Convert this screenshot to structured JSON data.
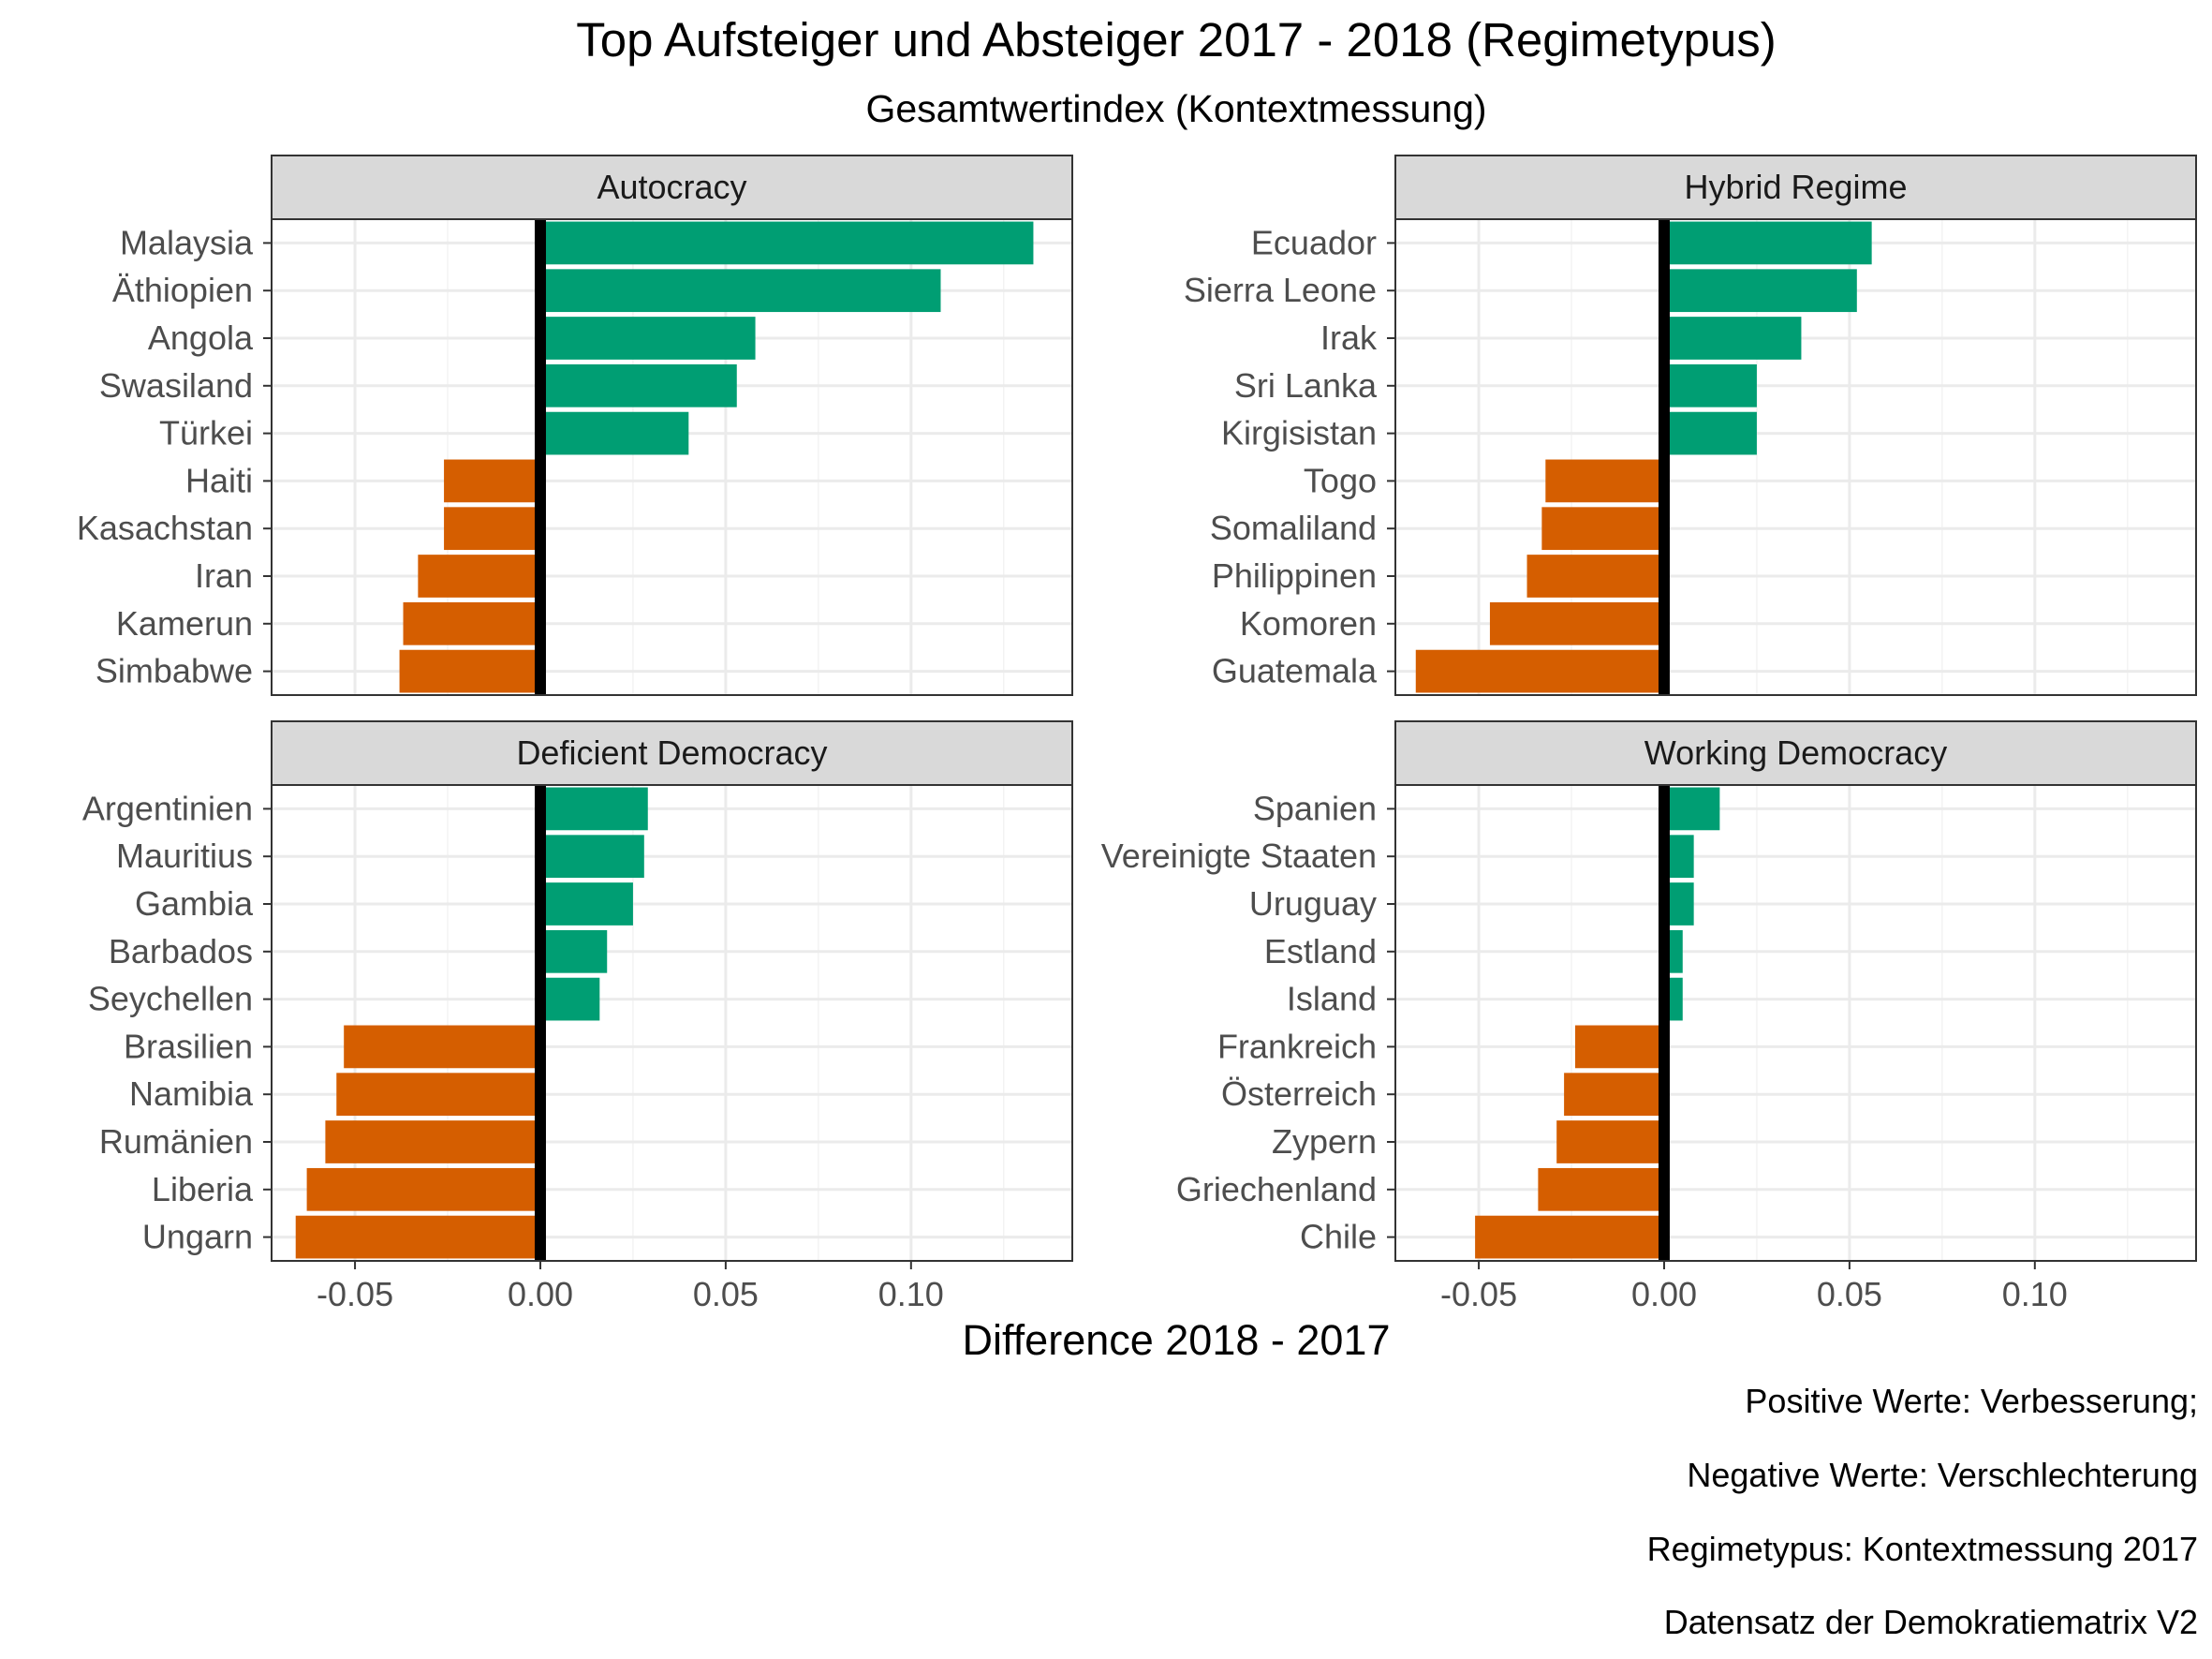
{
  "chart_data": {
    "type": "bar",
    "orientation": "horizontal",
    "title": "Top Aufsteiger und Absteiger 2017 - 2018 (Regimetypus)",
    "subtitle": "Gesamtwertindex (Kontextmessung)",
    "xlabel": "Difference 2018 - 2017",
    "xlim": [
      -0.0725,
      0.1435
    ],
    "xticks": [
      -0.05,
      0.0,
      0.05,
      0.1
    ],
    "xtick_labels": [
      "-0.05",
      "0.00",
      "0.05",
      "0.10"
    ],
    "grid": true,
    "reference_line": 0,
    "colors": {
      "positive": "#009E73",
      "negative": "#D55E00",
      "zero_line": "#000000",
      "strip_fill": "#D9D9D9",
      "grid": "#EBEBEB"
    },
    "captions": [
      "Positive Werte: Verbesserung;",
      "Negative Werte: Verschlechterung",
      "Regimetypus: Kontextmessung 2017",
      "Datensatz der Demokratiematrix V2"
    ],
    "panels": [
      {
        "name": "Autocracy",
        "categories": [
          "Malaysia",
          "Äthiopien",
          "Angola",
          "Swasiland",
          "Türkei",
          "Haiti",
          "Kasachstan",
          "Iran",
          "Kamerun",
          "Simbabwe"
        ],
        "values": [
          0.133,
          0.108,
          0.058,
          0.053,
          0.04,
          -0.026,
          -0.026,
          -0.033,
          -0.037,
          -0.038
        ]
      },
      {
        "name": "Hybrid Regime",
        "categories": [
          "Ecuador",
          "Sierra Leone",
          "Irak",
          "Sri Lanka",
          "Kirgisistan",
          "Togo",
          "Somaliland",
          "Philippinen",
          "Komoren",
          "Guatemala"
        ],
        "values": [
          0.056,
          0.052,
          0.037,
          0.025,
          0.025,
          -0.032,
          -0.033,
          -0.037,
          -0.047,
          -0.067
        ]
      },
      {
        "name": "Deficient Democracy",
        "categories": [
          "Argentinien",
          "Mauritius",
          "Gambia",
          "Barbados",
          "Seychellen",
          "Brasilien",
          "Namibia",
          "Rumänien",
          "Liberia",
          "Ungarn"
        ],
        "values": [
          0.029,
          0.028,
          0.025,
          0.018,
          0.016,
          -0.053,
          -0.055,
          -0.058,
          -0.063,
          -0.066
        ]
      },
      {
        "name": "Working Democracy",
        "categories": [
          "Spanien",
          "Vereinigte Staaten",
          "Uruguay",
          "Estland",
          "Island",
          "Frankreich",
          "Österreich",
          "Zypern",
          "Griechenland",
          "Chile"
        ],
        "values": [
          0.015,
          0.008,
          0.008,
          0.005,
          0.005,
          -0.024,
          -0.027,
          -0.029,
          -0.034,
          -0.051
        ]
      }
    ]
  }
}
